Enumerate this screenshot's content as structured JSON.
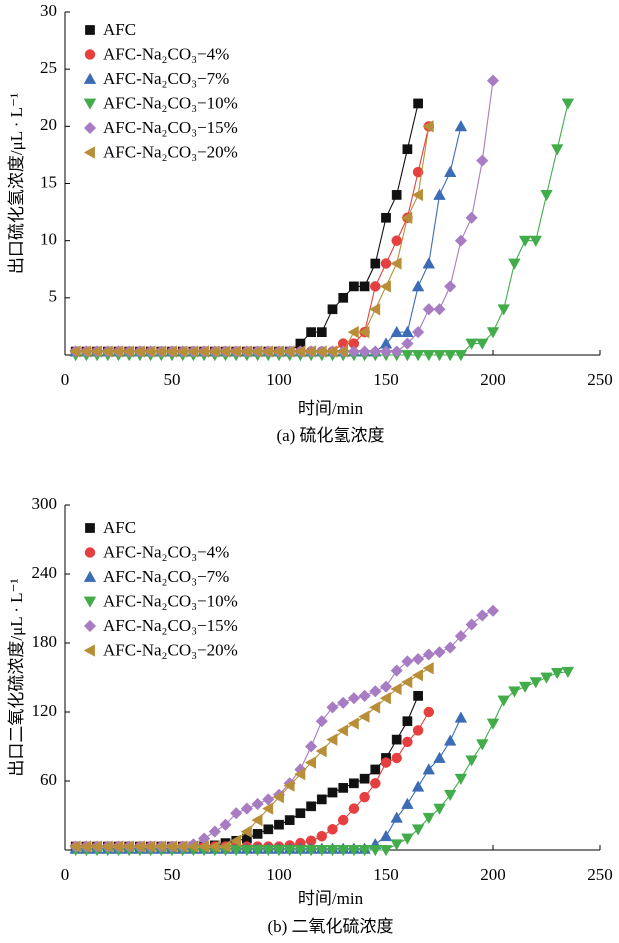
{
  "chart_data": [
    {
      "type": "line",
      "title": "(a) 硫化氢浓度",
      "x_label": "时间/min",
      "y_label": "出口硫化氢浓度/μL · L⁻¹",
      "xlim": [
        0,
        250
      ],
      "xticks": [
        0,
        50,
        100,
        150,
        200,
        250
      ],
      "ylim": [
        0,
        30
      ],
      "yticks": [
        5,
        10,
        15,
        20,
        25,
        30
      ],
      "x": [
        5,
        10,
        15,
        20,
        25,
        30,
        35,
        40,
        45,
        50,
        55,
        60,
        65,
        70,
        75,
        80,
        85,
        90,
        95,
        100,
        105,
        110,
        115,
        120,
        125,
        130,
        135,
        140,
        145,
        150,
        155,
        160,
        165,
        170,
        175,
        180,
        185,
        190,
        195,
        200,
        205,
        210,
        215,
        220,
        225,
        230,
        235
      ],
      "series": [
        {
          "name": "AFC",
          "color": "#111111",
          "marker": "square",
          "values": [
            0.3,
            0.3,
            0.3,
            0.3,
            0.3,
            0.3,
            0.3,
            0.3,
            0.3,
            0.3,
            0.3,
            0.3,
            0.3,
            0.3,
            0.3,
            0.3,
            0.3,
            0.3,
            0.3,
            0.3,
            0.3,
            1,
            2,
            2,
            4,
            5,
            6,
            6,
            8,
            12,
            14,
            18,
            22,
            null,
            null,
            null,
            null,
            null,
            null,
            null,
            null,
            null,
            null,
            null,
            null,
            null,
            null
          ]
        },
        {
          "name": "AFC-Na₂CO₃−4%",
          "color": "#e5403f",
          "marker": "circle",
          "values": [
            0.3,
            0.3,
            0.3,
            0.3,
            0.3,
            0.3,
            0.3,
            0.3,
            0.3,
            0.3,
            0.3,
            0.3,
            0.3,
            0.3,
            0.3,
            0.3,
            0.3,
            0.3,
            0.3,
            0.3,
            0.3,
            0.3,
            0.3,
            0.3,
            0.3,
            1,
            1,
            2,
            6,
            8,
            10,
            12,
            16,
            20,
            null,
            null,
            null,
            null,
            null,
            null,
            null,
            null,
            null,
            null,
            null,
            null,
            null
          ]
        },
        {
          "name": "AFC-Na₂CO₃−7%",
          "color": "#3b6cb5",
          "marker": "triangle-up",
          "values": [
            0.3,
            0.3,
            0.3,
            0.3,
            0.3,
            0.3,
            0.3,
            0.3,
            0.3,
            0.3,
            0.3,
            0.3,
            0.3,
            0.3,
            0.3,
            0.3,
            0.3,
            0.3,
            0.3,
            0.3,
            0.3,
            0.3,
            0.3,
            0.3,
            0.3,
            0.3,
            0.3,
            0.3,
            0.3,
            1,
            2,
            2,
            6,
            8,
            14,
            16,
            20,
            null,
            null,
            null,
            null,
            null,
            null,
            null,
            null,
            null,
            null
          ]
        },
        {
          "name": "AFC-Na₂CO₃−10%",
          "color": "#42ac4a",
          "marker": "triangle-down",
          "values": [
            0,
            0,
            0,
            0,
            0,
            0,
            0,
            0,
            0,
            0,
            0,
            0,
            0,
            0,
            0,
            0,
            0,
            0,
            0,
            0,
            0,
            0,
            0,
            0,
            0,
            0,
            0,
            0,
            0,
            0,
            0,
            0,
            0,
            0,
            0,
            0,
            0,
            1,
            1,
            2,
            4,
            8,
            10,
            10,
            14,
            18,
            22
          ]
        },
        {
          "name": "AFC-Na₂CO₃−15%",
          "color": "#a77cc3",
          "marker": "diamond",
          "values": [
            0.3,
            0.3,
            0.3,
            0.3,
            0.3,
            0.3,
            0.3,
            0.3,
            0.3,
            0.3,
            0.3,
            0.3,
            0.3,
            0.3,
            0.3,
            0.3,
            0.3,
            0.3,
            0.3,
            0.3,
            0.3,
            0.3,
            0.3,
            0.3,
            0.3,
            0.3,
            0.3,
            0.3,
            0.3,
            0.3,
            0.3,
            1,
            2,
            4,
            4,
            6,
            10,
            12,
            17,
            24,
            null,
            null,
            null,
            null,
            null,
            null,
            null
          ]
        },
        {
          "name": "AFC-Na₂CO₃−20%",
          "color": "#b88f38",
          "marker": "triangle-left",
          "values": [
            0.3,
            0.3,
            0.3,
            0.3,
            0.3,
            0.3,
            0.3,
            0.3,
            0.3,
            0.3,
            0.3,
            0.3,
            0.3,
            0.3,
            0.3,
            0.3,
            0.3,
            0.3,
            0.3,
            0.3,
            0.3,
            0.3,
            0.3,
            0.3,
            0.3,
            0.3,
            2,
            2,
            4,
            6,
            8,
            12,
            14,
            20,
            null,
            null,
            null,
            null,
            null,
            null,
            null,
            null,
            null,
            null,
            null,
            null,
            null
          ]
        }
      ]
    },
    {
      "type": "line",
      "title": "(b) 二氧化硫浓度",
      "x_label": "时间/min",
      "y_label": "出口二氧化硫浓度/μL · L⁻¹",
      "xlim": [
        0,
        250
      ],
      "xticks": [
        0,
        50,
        100,
        150,
        200,
        250
      ],
      "ylim": [
        0,
        300
      ],
      "yticks": [
        60,
        120,
        180,
        240,
        300
      ],
      "x": [
        5,
        10,
        15,
        20,
        25,
        30,
        35,
        40,
        45,
        50,
        55,
        60,
        65,
        70,
        75,
        80,
        85,
        90,
        95,
        100,
        105,
        110,
        115,
        120,
        125,
        130,
        135,
        140,
        145,
        150,
        155,
        160,
        165,
        170,
        175,
        180,
        185,
        190,
        195,
        200,
        205,
        210,
        215,
        220,
        225,
        230,
        235
      ],
      "series": [
        {
          "name": "AFC",
          "color": "#111111",
          "marker": "square",
          "values": [
            3,
            3,
            3,
            3,
            3,
            3,
            3,
            3,
            3,
            3,
            3,
            3,
            3,
            4,
            6,
            8,
            10,
            14,
            18,
            22,
            26,
            32,
            38,
            44,
            50,
            54,
            58,
            62,
            70,
            80,
            96,
            112,
            134,
            null,
            null,
            null,
            null,
            null,
            null,
            null,
            null,
            null,
            null,
            null,
            null,
            null,
            null
          ]
        },
        {
          "name": "AFC-Na₂CO₃−4%",
          "color": "#e5403f",
          "marker": "circle",
          "values": [
            3,
            3,
            3,
            3,
            3,
            3,
            3,
            3,
            3,
            3,
            3,
            3,
            3,
            3,
            3,
            3,
            3,
            3,
            3,
            3,
            4,
            6,
            8,
            12,
            18,
            26,
            36,
            46,
            58,
            76,
            80,
            94,
            104,
            120,
            null,
            null,
            null,
            null,
            null,
            null,
            null,
            null,
            null,
            null,
            null,
            null,
            null
          ]
        },
        {
          "name": "AFC-Na₂CO₃−7%",
          "color": "#3b6cb5",
          "marker": "triangle-up",
          "values": [
            1,
            1,
            1,
            1,
            1,
            1,
            1,
            1,
            1,
            1,
            1,
            1,
            1,
            1,
            1,
            1,
            1,
            1,
            1,
            1,
            1,
            1,
            1,
            1,
            1,
            1,
            1,
            1,
            5,
            12,
            28,
            40,
            55,
            70,
            80,
            95,
            115,
            null,
            null,
            null,
            null,
            null,
            null,
            null,
            null,
            null,
            null
          ]
        },
        {
          "name": "AFC-Na₂CO₃−10%",
          "color": "#42ac4a",
          "marker": "triangle-down",
          "values": [
            0,
            0,
            0,
            0,
            0,
            0,
            0,
            0,
            0,
            0,
            0,
            0,
            0,
            0,
            0,
            0,
            0,
            0,
            0,
            0,
            0,
            0,
            0,
            0,
            0,
            0,
            0,
            0,
            0,
            0,
            5,
            10,
            18,
            28,
            36,
            48,
            62,
            78,
            92,
            110,
            130,
            138,
            142,
            146,
            150,
            154,
            155
          ]
        },
        {
          "name": "AFC-Na₂CO₃−15%",
          "color": "#a77cc3",
          "marker": "diamond",
          "values": [
            3,
            3,
            3,
            3,
            3,
            3,
            3,
            3,
            3,
            3,
            3,
            5,
            10,
            16,
            22,
            32,
            36,
            40,
            44,
            48,
            58,
            70,
            90,
            112,
            124,
            128,
            132,
            134,
            138,
            142,
            156,
            164,
            166,
            170,
            172,
            176,
            186,
            196,
            204,
            208,
            null,
            null,
            null,
            null,
            null,
            null,
            null
          ]
        },
        {
          "name": "AFC-Na₂CO₃−20%",
          "color": "#b88f38",
          "marker": "triangle-left",
          "values": [
            3,
            3,
            3,
            3,
            3,
            3,
            3,
            3,
            3,
            3,
            3,
            3,
            3,
            3,
            3,
            8,
            16,
            26,
            36,
            46,
            56,
            66,
            76,
            86,
            96,
            104,
            110,
            116,
            124,
            132,
            140,
            146,
            152,
            158,
            null,
            null,
            null,
            null,
            null,
            null,
            null,
            null,
            null,
            null,
            null,
            null,
            null
          ]
        }
      ]
    }
  ]
}
